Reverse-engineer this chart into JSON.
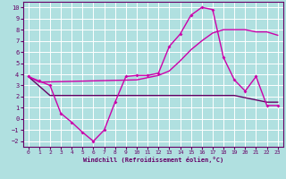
{
  "bg_color": "#b0e0e0",
  "grid_color": "#ffffff",
  "line_color1": "#cc00aa",
  "line_color2": "#cc00aa",
  "line_color3": "#660066",
  "xlabel": "Windchill (Refroidissement éolien,°C)",
  "x_ticks": [
    0,
    1,
    2,
    3,
    4,
    5,
    6,
    7,
    8,
    9,
    10,
    11,
    12,
    13,
    14,
    15,
    16,
    17,
    18,
    19,
    20,
    21,
    22,
    23
  ],
  "ylim": [
    -2.5,
    10.5
  ],
  "xlim": [
    -0.5,
    23.5
  ],
  "line1_x": [
    0,
    1,
    2,
    3,
    4,
    5,
    6,
    7,
    8,
    9,
    10,
    11,
    12,
    13,
    14,
    15,
    16,
    17,
    18,
    19,
    20,
    21,
    22,
    23
  ],
  "line1_y": [
    3.8,
    3.4,
    3.0,
    0.5,
    -0.3,
    -1.2,
    -2.0,
    -1.0,
    1.5,
    3.8,
    3.9,
    3.9,
    4.1,
    6.5,
    7.6,
    9.3,
    10.0,
    9.8,
    5.5,
    3.5,
    2.5,
    3.8,
    1.2,
    1.2
  ],
  "line2_x": [
    0,
    1,
    10,
    11,
    12,
    13,
    14,
    15,
    16,
    17,
    18,
    19,
    20,
    21,
    22,
    23
  ],
  "line2_y": [
    3.8,
    3.3,
    3.5,
    3.7,
    3.9,
    4.3,
    5.2,
    6.2,
    7.0,
    7.7,
    8.0,
    8.0,
    8.0,
    7.8,
    7.8,
    7.5
  ],
  "line3_x": [
    0,
    2,
    3,
    10,
    19,
    22,
    23
  ],
  "line3_y": [
    3.8,
    2.1,
    2.1,
    2.1,
    2.1,
    1.5,
    1.5
  ],
  "yticks": [
    -2,
    -1,
    0,
    1,
    2,
    3,
    4,
    5,
    6,
    7,
    8,
    9,
    10
  ]
}
